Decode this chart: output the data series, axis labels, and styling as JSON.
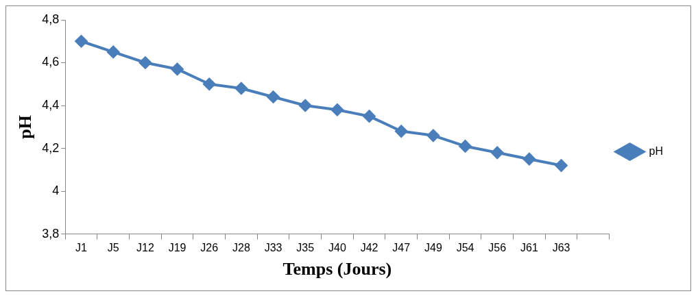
{
  "chart_data": {
    "type": "line",
    "xlabel": "Temps (Jours)",
    "ylabel": "pH",
    "categories": [
      "J1",
      "J5",
      "J12",
      "J19",
      "J26",
      "J28",
      "J33",
      "J35",
      "J40",
      "J42",
      "J47",
      "J49",
      "J54",
      "J56",
      "J61",
      "J63",
      null
    ],
    "series": [
      {
        "name": "pH",
        "color": "#4a7ebb",
        "values": [
          4.7,
          4.65,
          4.6,
          4.57,
          4.5,
          4.48,
          4.44,
          4.4,
          4.38,
          4.35,
          4.28,
          4.26,
          4.21,
          4.18,
          4.15,
          4.12,
          null
        ]
      }
    ],
    "ylim": [
      3.8,
      4.8
    ],
    "yticks": [
      {
        "value": 3.8,
        "label": "3,8"
      },
      {
        "value": 4,
        "label": "4"
      },
      {
        "value": 4.2,
        "label": "4,2"
      },
      {
        "value": 4.4,
        "label": "4,4"
      },
      {
        "value": 4.6,
        "label": "4,6"
      },
      {
        "value": 4.8,
        "label": "4,8"
      }
    ],
    "grid": false,
    "legend": "right",
    "marker": "diamond",
    "line_style": "solid"
  }
}
